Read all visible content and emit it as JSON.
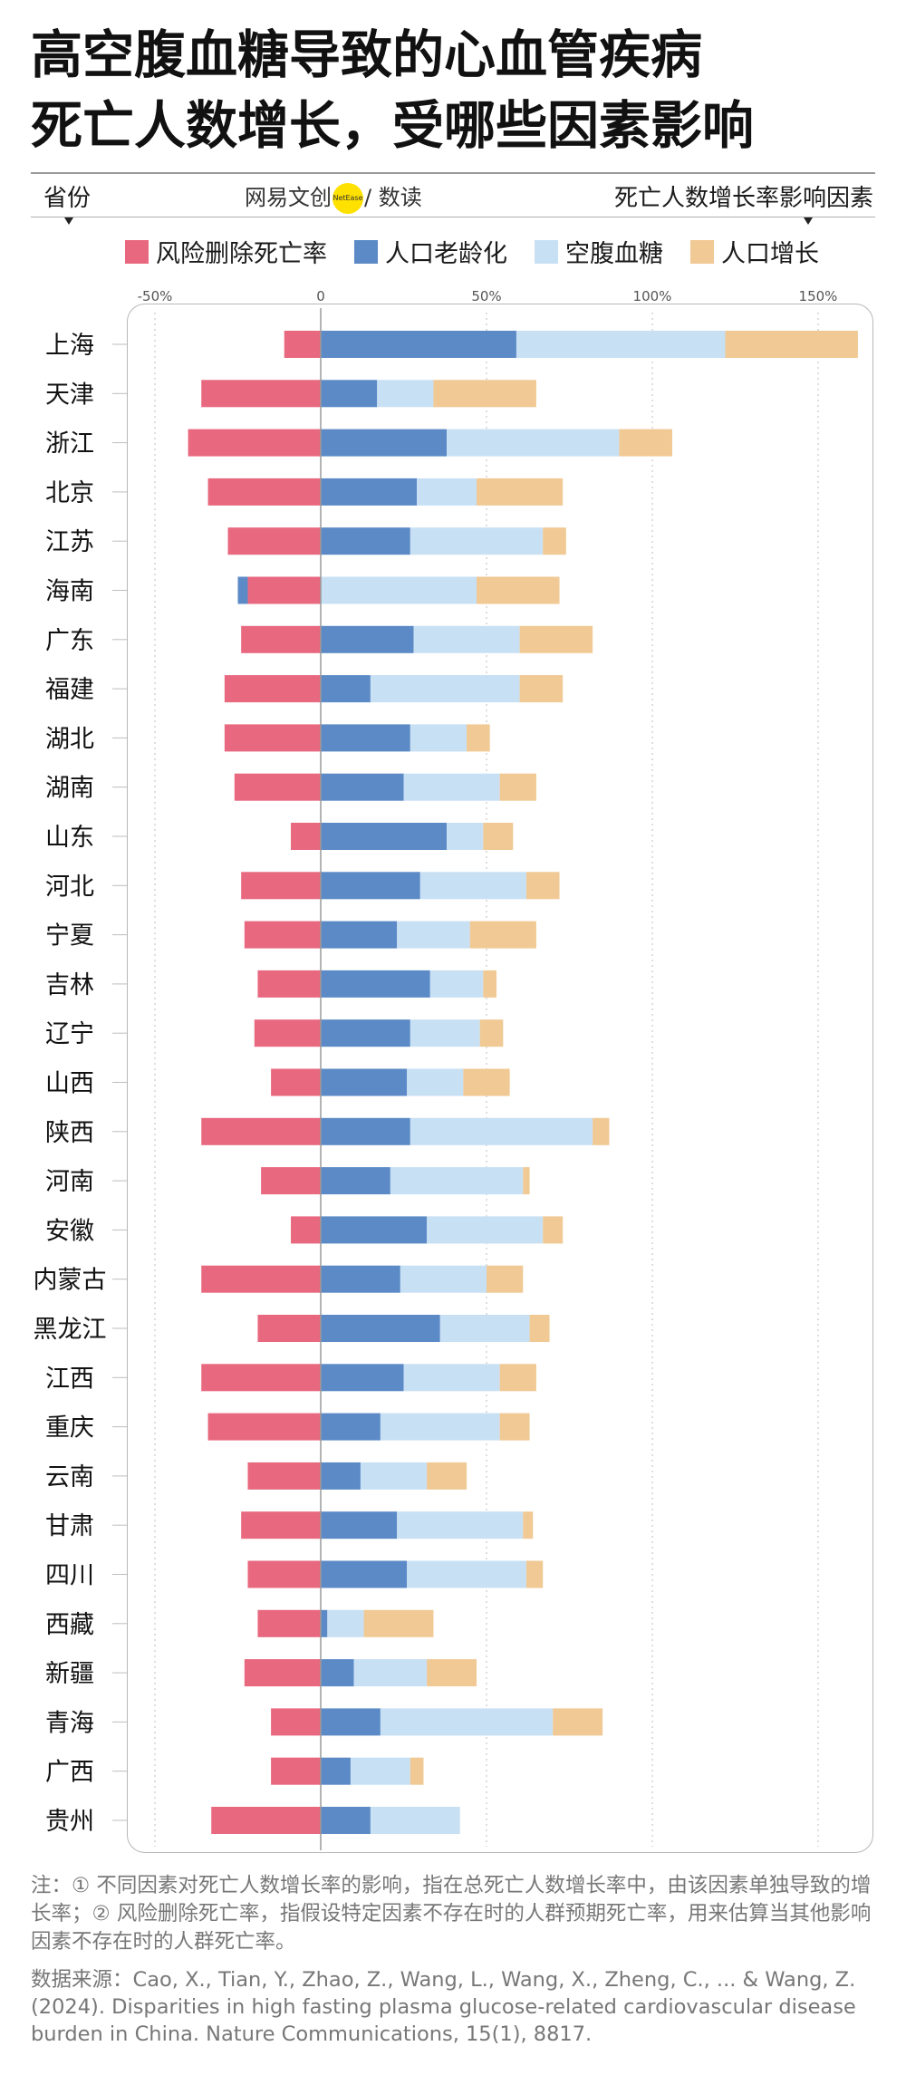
{
  "title_lines": [
    "高空腹血糖导致的心血管疾病",
    "死亡人数增长，受哪些因素影响"
  ],
  "header": {
    "left": "省份",
    "right": "死亡人数增长率影响因素",
    "brand_left": "网易",
    "brand_mid": "文创",
    "brand_logo": "NetEase",
    "brand_right": "/ 数读"
  },
  "legend": [
    {
      "name": "风险删除死亡率",
      "color": "#e8687f"
    },
    {
      "name": "人口老龄化",
      "color": "#5b8ac6"
    },
    {
      "name": "空腹血糖",
      "color": "#c8e0f4"
    },
    {
      "name": "人口增长",
      "color": "#f0c994"
    }
  ],
  "note": "注：① 不同因素对死亡人数增长率的影响，指在总死亡人数增长率中，由该因素单独导致的增长率；② 风险删除死亡率，指假设特定因素不存在时的人群预期死亡率，用来估算当其他影响因素不存在时的人群死亡率。",
  "source": "数据来源：Cao, X., Tian, Y., Zhao, Z., Wang, L., Wang, X., Zheng, C., ... & Wang, Z. (2024). Disparities in high fasting plasma glucose-related cardiovascular disease burden in China. Nature Communications, 15(1), 8817.",
  "chart_data": {
    "type": "bar",
    "orientation": "horizontal",
    "stacked": true,
    "xlim": [
      -50,
      160
    ],
    "xticks": [
      -50,
      0,
      50,
      100,
      150
    ],
    "xtick_labels": [
      "-50%",
      "0",
      "50%",
      "100%",
      "150%"
    ],
    "legend_placement": "top",
    "categories": [
      "上海",
      "天津",
      "浙江",
      "北京",
      "江苏",
      "海南",
      "广东",
      "福建",
      "湖北",
      "湖南",
      "山东",
      "河北",
      "宁夏",
      "吉林",
      "辽宁",
      "山西",
      "陕西",
      "河南",
      "安徽",
      "内蒙古",
      "黑龙江",
      "江西",
      "重庆",
      "云南",
      "甘肃",
      "四川",
      "西藏",
      "新疆",
      "青海",
      "广西",
      "贵州"
    ],
    "series": [
      {
        "name": "风险删除死亡率",
        "color": "#e8687f",
        "values": [
          -11,
          -36,
          -40,
          -34,
          -28,
          -22,
          -24,
          -29,
          -29,
          -26,
          -9,
          -24,
          -23,
          -19,
          -20,
          -15,
          -36,
          -18,
          -9,
          -36,
          -19,
          -36,
          -34,
          -22,
          -24,
          -22,
          -19,
          -23,
          -15,
          -15,
          -33
        ]
      },
      {
        "name": "人口老龄化",
        "color": "#5b8ac6",
        "values": [
          59,
          17,
          38,
          29,
          27,
          -3,
          28,
          15,
          27,
          25,
          38,
          30,
          23,
          33,
          27,
          26,
          27,
          21,
          32,
          24,
          36,
          25,
          18,
          12,
          23,
          26,
          2,
          10,
          18,
          9,
          15
        ]
      },
      {
        "name": "空腹血糖",
        "color": "#c8e0f4",
        "values": [
          63,
          17,
          52,
          18,
          40,
          47,
          32,
          45,
          17,
          29,
          11,
          32,
          22,
          16,
          21,
          17,
          55,
          40,
          35,
          26,
          27,
          29,
          36,
          20,
          38,
          36,
          11,
          22,
          52,
          18,
          27
        ]
      },
      {
        "name": "人口增长",
        "color": "#f0c994",
        "values": [
          40,
          31,
          16,
          26,
          7,
          25,
          22,
          13,
          7,
          11,
          9,
          10,
          20,
          4,
          7,
          14,
          5,
          2,
          6,
          11,
          6,
          11,
          9,
          12,
          3,
          5,
          21,
          15,
          15,
          4,
          0
        ]
      }
    ]
  }
}
